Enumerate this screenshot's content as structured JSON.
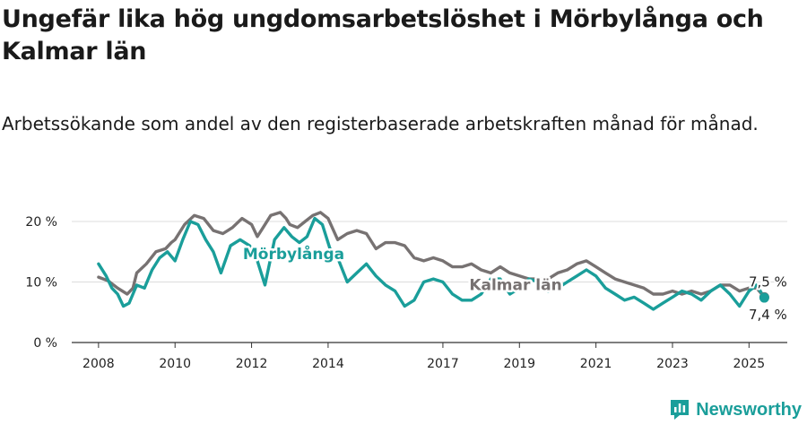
{
  "title": "Ungefär lika hög ungdomsarbetslöshet i Mörbylånga och Kalmar län",
  "subtitle": "Arbetssökande som andel av den registerbaserade arbetskraften månad för månad.",
  "brand": "Newsworthy",
  "colors": {
    "morbylanga": "#1a9e9a",
    "kalmar": "#777277",
    "grid": "#dddddd",
    "axis": "#333333"
  },
  "chart_data": {
    "type": "line",
    "x_unit": "year",
    "xlim": [
      2007.3,
      2026.0
    ],
    "ylim": [
      0,
      20
    ],
    "y_ticks": [
      {
        "value": 0,
        "label": "0 %"
      },
      {
        "value": 10,
        "label": "10 %"
      },
      {
        "value": 20,
        "label": "20 %"
      }
    ],
    "x_ticks": [
      {
        "value": 2008,
        "label": "2008"
      },
      {
        "value": 2010,
        "label": "2010"
      },
      {
        "value": 2012,
        "label": "2012"
      },
      {
        "value": 2014,
        "label": "2014"
      },
      {
        "value": 2017,
        "label": "2017"
      },
      {
        "value": 2019,
        "label": "2019"
      },
      {
        "value": 2021,
        "label": "2021"
      },
      {
        "value": 2023,
        "label": "2023"
      },
      {
        "value": 2025,
        "label": "2025"
      }
    ],
    "grid": true,
    "series": [
      {
        "name": "Kalmar län",
        "color": "#777272",
        "label_at": [
          2018.9,
          8.7
        ],
        "end_label": "7,5 %",
        "points": [
          [
            2008.0,
            10.8
          ],
          [
            2008.25,
            10.2
          ],
          [
            2008.5,
            9.0
          ],
          [
            2008.75,
            8.0
          ],
          [
            2008.9,
            9.0
          ],
          [
            2009.0,
            11.5
          ],
          [
            2009.25,
            13.0
          ],
          [
            2009.5,
            15.0
          ],
          [
            2009.75,
            15.5
          ],
          [
            2009.9,
            16.5
          ],
          [
            2010.0,
            17.0
          ],
          [
            2010.25,
            19.5
          ],
          [
            2010.5,
            21.0
          ],
          [
            2010.75,
            20.5
          ],
          [
            2011.0,
            18.5
          ],
          [
            2011.25,
            18.0
          ],
          [
            2011.5,
            19.0
          ],
          [
            2011.75,
            20.5
          ],
          [
            2012.0,
            19.5
          ],
          [
            2012.15,
            17.5
          ],
          [
            2012.3,
            19.0
          ],
          [
            2012.5,
            21.0
          ],
          [
            2012.75,
            21.5
          ],
          [
            2012.9,
            20.5
          ],
          [
            2013.0,
            19.5
          ],
          [
            2013.2,
            19.0
          ],
          [
            2013.4,
            20.0
          ],
          [
            2013.6,
            21.0
          ],
          [
            2013.8,
            21.5
          ],
          [
            2014.0,
            20.5
          ],
          [
            2014.25,
            17.0
          ],
          [
            2014.5,
            18.0
          ],
          [
            2014.75,
            18.5
          ],
          [
            2015.0,
            18.0
          ],
          [
            2015.25,
            15.5
          ],
          [
            2015.5,
            16.5
          ],
          [
            2015.75,
            16.5
          ],
          [
            2016.0,
            16.0
          ],
          [
            2016.25,
            14.0
          ],
          [
            2016.5,
            13.5
          ],
          [
            2016.75,
            14.0
          ],
          [
            2017.0,
            13.5
          ],
          [
            2017.25,
            12.5
          ],
          [
            2017.5,
            12.5
          ],
          [
            2017.75,
            13.0
          ],
          [
            2018.0,
            12.0
          ],
          [
            2018.25,
            11.5
          ],
          [
            2018.5,
            12.5
          ],
          [
            2018.75,
            11.5
          ],
          [
            2019.0,
            11.0
          ],
          [
            2019.25,
            10.5
          ],
          [
            2019.5,
            10.5
          ],
          [
            2019.75,
            10.5
          ],
          [
            2020.0,
            11.5
          ],
          [
            2020.25,
            12.0
          ],
          [
            2020.5,
            13.0
          ],
          [
            2020.75,
            13.5
          ],
          [
            2021.0,
            12.5
          ],
          [
            2021.25,
            11.5
          ],
          [
            2021.5,
            10.5
          ],
          [
            2021.75,
            10.0
          ],
          [
            2022.0,
            9.5
          ],
          [
            2022.25,
            9.0
          ],
          [
            2022.5,
            8.0
          ],
          [
            2022.75,
            8.0
          ],
          [
            2023.0,
            8.5
          ],
          [
            2023.25,
            8.0
          ],
          [
            2023.5,
            8.5
          ],
          [
            2023.75,
            8.0
          ],
          [
            2024.0,
            8.5
          ],
          [
            2024.25,
            9.5
          ],
          [
            2024.5,
            9.5
          ],
          [
            2024.75,
            8.5
          ],
          [
            2025.0,
            9.0
          ],
          [
            2025.2,
            9.0
          ],
          [
            2025.4,
            7.5
          ]
        ]
      },
      {
        "name": "Mörbylånga",
        "color": "#1a9e9a",
        "label_at": [
          2013.1,
          13.8
        ],
        "end_label": "7,4 %",
        "points": [
          [
            2008.0,
            13.0
          ],
          [
            2008.2,
            11.0
          ],
          [
            2008.35,
            9.0
          ],
          [
            2008.5,
            8.0
          ],
          [
            2008.65,
            6.0
          ],
          [
            2008.8,
            6.5
          ],
          [
            2009.0,
            9.5
          ],
          [
            2009.2,
            9.0
          ],
          [
            2009.4,
            12.0
          ],
          [
            2009.6,
            14.0
          ],
          [
            2009.8,
            15.0
          ],
          [
            2010.0,
            13.5
          ],
          [
            2010.2,
            17.0
          ],
          [
            2010.4,
            20.0
          ],
          [
            2010.6,
            19.5
          ],
          [
            2010.8,
            17.0
          ],
          [
            2011.0,
            15.0
          ],
          [
            2011.2,
            11.5
          ],
          [
            2011.45,
            16.0
          ],
          [
            2011.7,
            17.0
          ],
          [
            2011.95,
            16.0
          ],
          [
            2012.15,
            13.5
          ],
          [
            2012.35,
            9.5
          ],
          [
            2012.6,
            17.0
          ],
          [
            2012.85,
            19.0
          ],
          [
            2013.05,
            17.5
          ],
          [
            2013.25,
            16.5
          ],
          [
            2013.45,
            17.5
          ],
          [
            2013.65,
            20.5
          ],
          [
            2013.85,
            19.5
          ],
          [
            2014.05,
            15.5
          ],
          [
            2014.25,
            14.0
          ],
          [
            2014.5,
            10.0
          ],
          [
            2014.75,
            11.5
          ],
          [
            2015.0,
            13.0
          ],
          [
            2015.25,
            11.0
          ],
          [
            2015.5,
            9.5
          ],
          [
            2015.75,
            8.5
          ],
          [
            2016.0,
            6.0
          ],
          [
            2016.25,
            7.0
          ],
          [
            2016.5,
            10.0
          ],
          [
            2016.75,
            10.5
          ],
          [
            2017.0,
            10.0
          ],
          [
            2017.25,
            8.0
          ],
          [
            2017.5,
            7.0
          ],
          [
            2017.75,
            7.0
          ],
          [
            2018.0,
            8.0
          ],
          [
            2018.25,
            10.5
          ],
          [
            2018.5,
            10.5
          ],
          [
            2018.75,
            8.0
          ],
          [
            2019.0,
            9.0
          ],
          [
            2019.25,
            10.5
          ],
          [
            2019.5,
            10.0
          ],
          [
            2019.75,
            8.5
          ],
          [
            2020.0,
            9.0
          ],
          [
            2020.25,
            10.0
          ],
          [
            2020.5,
            11.0
          ],
          [
            2020.75,
            12.0
          ],
          [
            2021.0,
            11.0
          ],
          [
            2021.25,
            9.0
          ],
          [
            2021.5,
            8.0
          ],
          [
            2021.75,
            7.0
          ],
          [
            2022.0,
            7.5
          ],
          [
            2022.25,
            6.5
          ],
          [
            2022.5,
            5.5
          ],
          [
            2022.75,
            6.5
          ],
          [
            2023.0,
            7.5
          ],
          [
            2023.25,
            8.5
          ],
          [
            2023.5,
            8.0
          ],
          [
            2023.75,
            7.0
          ],
          [
            2024.0,
            8.5
          ],
          [
            2024.25,
            9.5
          ],
          [
            2024.5,
            8.0
          ],
          [
            2024.75,
            6.0
          ],
          [
            2025.0,
            8.5
          ],
          [
            2025.2,
            9.5
          ],
          [
            2025.4,
            7.4
          ]
        ]
      }
    ]
  }
}
